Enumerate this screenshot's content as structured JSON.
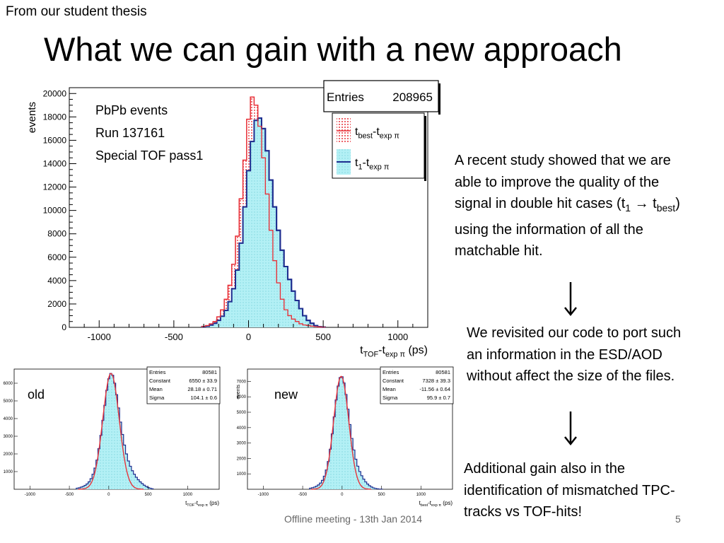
{
  "slide": {
    "top_note": "From our student thesis",
    "title": "What we can gain with a new approach",
    "paragraph1": {
      "before": "A recent study showed that we are able to improve the quality of the signal in double hit cases (t",
      "sub1": "1",
      "arrow": " → t",
      "sub2": "best",
      "after": ") using the information of all the matchable hit."
    },
    "paragraph2": "We revisited our code to port such an information in the ESD/AOD without affect the size of the files.",
    "paragraph3": "Additional gain also in the identification of mismatched TPC-tracks vs TOF-hits!",
    "footer": "Offline meeting - 13th Jan 2014",
    "page_number": "5",
    "colors": {
      "red": "#e8333a",
      "blue": "#1e2d8f",
      "cyan_fill": "#b3f0f5"
    }
  },
  "chart_data": [
    {
      "id": "main",
      "type": "bar",
      "ylabel": "events",
      "xlabel": {
        "main": "t",
        "sub1": "TOF",
        "mid": "-t",
        "sub2": "exp π",
        "unit": " (ps)"
      },
      "xlim": [
        -1200,
        1200
      ],
      "ylim": [
        0,
        20500
      ],
      "x_ticks": [
        -1000,
        -500,
        0,
        500,
        1000
      ],
      "y_ticks": [
        0,
        2000,
        4000,
        6000,
        8000,
        10000,
        12000,
        14000,
        16000,
        18000,
        20000
      ],
      "stats": {
        "label": "Entries",
        "value": "208965"
      },
      "annotations": [
        "PbPb events",
        "Run 137161",
        "Special TOF pass1"
      ],
      "legend_position": "top-right",
      "bin_width": 25,
      "x": [
        -300,
        -275,
        -250,
        -225,
        -200,
        -175,
        -150,
        -125,
        -100,
        -75,
        -50,
        -25,
        0,
        25,
        50,
        75,
        100,
        125,
        150,
        175,
        200,
        225,
        250,
        275,
        300,
        325,
        350,
        375,
        400,
        425,
        450,
        475,
        500
      ],
      "series": [
        {
          "name": {
            "main": "t",
            "sub1": "best",
            "mid": "-t",
            "sub2": "exp π"
          },
          "color": "#e8333a",
          "values": [
            80,
            150,
            300,
            500,
            900,
            1500,
            2400,
            3600,
            5400,
            7800,
            11000,
            14300,
            17800,
            19700,
            19000,
            17200,
            14500,
            11400,
            8300,
            5700,
            3800,
            2400,
            1500,
            1000,
            700,
            500,
            300,
            200,
            150,
            100,
            60,
            40,
            20
          ]
        },
        {
          "name": {
            "main": "t",
            "sub1": "1",
            "mid": "-t",
            "sub2": "exp π"
          },
          "color": "#1e2d8f",
          "fill": "#b3f0f5",
          "values": [
            50,
            100,
            200,
            350,
            600,
            950,
            1450,
            2200,
            3300,
            4900,
            7200,
            10300,
            13400,
            15900,
            17700,
            17900,
            17000,
            15100,
            12600,
            10300,
            8300,
            6600,
            5200,
            4100,
            3100,
            2300,
            1600,
            1000,
            600,
            350,
            150,
            60,
            20
          ]
        }
      ]
    },
    {
      "id": "old",
      "type": "bar",
      "label": "old",
      "xlabel": {
        "main": "t",
        "sub1": "TOF",
        "mid": "-t",
        "sub2": "exp π",
        "unit": " (ps)"
      },
      "xlim": [
        -1200,
        1400
      ],
      "ylim": [
        0,
        6800
      ],
      "x_ticks": [
        -1000,
        -500,
        0,
        500,
        1000
      ],
      "y_ticks": [
        1000,
        2000,
        3000,
        4000,
        5000,
        6000
      ],
      "stats": [
        [
          "Entries",
          "80581"
        ],
        [
          "Constant",
          "6550 ± 33.9"
        ],
        [
          "Mean",
          "28.18 ± 0.71"
        ],
        [
          "Sigma",
          "104.1 ± 0.6"
        ]
      ],
      "fit": {
        "constant": 6550,
        "mean": 28.18,
        "sigma": 104.1
      },
      "bin_width": 25,
      "x": [
        -400,
        -375,
        -350,
        -325,
        -300,
        -275,
        -250,
        -225,
        -200,
        -175,
        -150,
        -125,
        -100,
        -75,
        -50,
        -25,
        0,
        25,
        50,
        75,
        100,
        125,
        150,
        175,
        200,
        225,
        250,
        275,
        300,
        325,
        350,
        375,
        400,
        425,
        450,
        475,
        500,
        525,
        550
      ],
      "values": [
        60,
        80,
        120,
        160,
        220,
        300,
        420,
        600,
        850,
        1200,
        1650,
        2300,
        3050,
        3900,
        4750,
        5600,
        6250,
        6550,
        6450,
        6000,
        5350,
        4600,
        3800,
        3100,
        2500,
        2000,
        1600,
        1300,
        1050,
        850,
        680,
        540,
        420,
        320,
        230,
        160,
        100,
        60,
        30
      ]
    },
    {
      "id": "new",
      "type": "bar",
      "label": "new",
      "ylabel": "events",
      "xlabel": {
        "main": "t",
        "sub1": "best",
        "mid": "-t",
        "sub2": "exp π",
        "unit": " (ps)"
      },
      "xlim": [
        -1200,
        1400
      ],
      "ylim": [
        0,
        7800
      ],
      "x_ticks": [
        -1000,
        -500,
        0,
        500,
        1000
      ],
      "y_ticks": [
        1000,
        2000,
        3000,
        4000,
        5000,
        6000,
        7000
      ],
      "stats": [
        [
          "Entries",
          "80581"
        ],
        [
          "Constant",
          "7328 ± 39.3"
        ],
        [
          "Mean",
          "-11.56 ± 0.64"
        ],
        [
          "Sigma",
          "95.9 ± 0.7"
        ]
      ],
      "fit": {
        "constant": 7328,
        "mean": -11.56,
        "sigma": 95.9
      },
      "bin_width": 25,
      "x": [
        -400,
        -375,
        -350,
        -325,
        -300,
        -275,
        -250,
        -225,
        -200,
        -175,
        -150,
        -125,
        -100,
        -75,
        -50,
        -25,
        0,
        25,
        50,
        75,
        100,
        125,
        150,
        175,
        200,
        225,
        250,
        275,
        300,
        325,
        350,
        375,
        400,
        425,
        450,
        475,
        500
      ],
      "values": [
        70,
        100,
        140,
        200,
        280,
        400,
        580,
        850,
        1250,
        1800,
        2600,
        3600,
        4700,
        5800,
        6700,
        7250,
        7300,
        6900,
        6150,
        5200,
        4200,
        3300,
        2550,
        1950,
        1500,
        1150,
        880,
        660,
        480,
        340,
        230,
        150,
        90,
        50,
        30,
        15,
        8
      ]
    }
  ]
}
